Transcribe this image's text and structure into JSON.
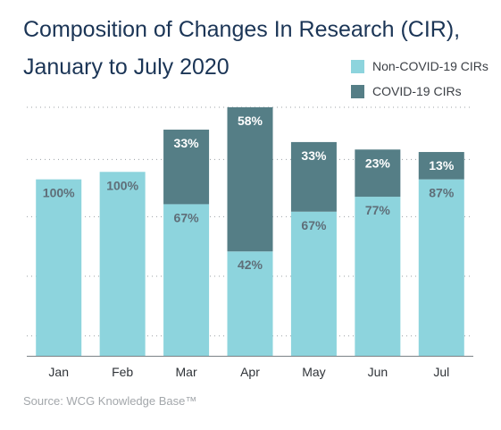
{
  "chart_data": {
    "type": "bar",
    "stacked": true,
    "title_lines": [
      "Composition of Changes In Research (CIR),",
      "January to July 2020"
    ],
    "categories": [
      "Jan",
      "Feb",
      "Mar",
      "Apr",
      "May",
      "Jun",
      "Jul"
    ],
    "totals": [
      71,
      74,
      91,
      100,
      86,
      83,
      82
    ],
    "series": [
      {
        "name": "Non-COVID-19 CIRs",
        "color": "#8dd4dd",
        "label_color": "#5f6e78",
        "pct_labels": [
          "100%",
          "100%",
          "67%",
          "42%",
          "67%",
          "77%",
          "87%"
        ],
        "values": [
          71,
          74,
          61,
          42,
          58,
          64,
          71
        ]
      },
      {
        "name": "COVID-19 CIRs",
        "color": "#557e86",
        "label_color": "#ffffff",
        "pct_labels": [
          "",
          "",
          "33%",
          "58%",
          "33%",
          "23%",
          "13%"
        ],
        "values": [
          0,
          0,
          30,
          58,
          28,
          19,
          11
        ]
      }
    ],
    "ylim": [
      0,
      100
    ],
    "grid": true,
    "legend_position": "top-right",
    "source": "Source: WCG Knowledge Base™"
  }
}
